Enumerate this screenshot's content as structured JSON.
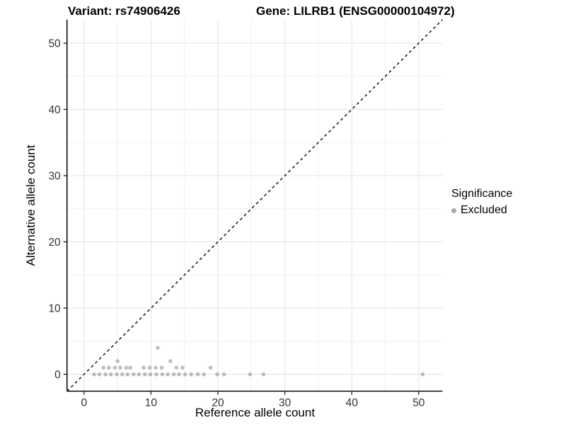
{
  "header": {
    "title_left": "Variant: rs74906426",
    "title_right": "Gene: LILRB1 (ENSG00000104972)"
  },
  "legend": {
    "title": "Significance",
    "items": [
      {
        "label": "Excluded",
        "color": "#a8a8a8"
      }
    ]
  },
  "chart_data": {
    "type": "scatter",
    "title": "Variant: rs74906426 — Gene: LILRB1 (ENSG00000104972)",
    "xlabel": "Reference allele count",
    "ylabel": "Alternative allele count",
    "xlim": [
      -2.55,
      53.55
    ],
    "ylim": [
      -2.55,
      53.55
    ],
    "x_ticks": [
      0,
      10,
      20,
      30,
      40,
      50
    ],
    "y_ticks": [
      0,
      10,
      20,
      30,
      40,
      50
    ],
    "minor_grid_step": 5,
    "grid": true,
    "legend_position": "right",
    "identity_line": {
      "style": "dashed",
      "equation": "y = x",
      "color": "#000000"
    },
    "point_color": "#8a8a8a",
    "point_opacity": 0.55,
    "series": [
      {
        "name": "Excluded",
        "points": [
          [
            1.5,
            0
          ],
          [
            2.3,
            0
          ],
          [
            3.2,
            0
          ],
          [
            4.0,
            0
          ],
          [
            4.9,
            0
          ],
          [
            5.7,
            0
          ],
          [
            6.5,
            0
          ],
          [
            7.4,
            0
          ],
          [
            8.2,
            0
          ],
          [
            9.1,
            0
          ],
          [
            9.9,
            0
          ],
          [
            10.8,
            0
          ],
          [
            11.7,
            0
          ],
          [
            12.5,
            0
          ],
          [
            13.4,
            0
          ],
          [
            14.2,
            0
          ],
          [
            15.1,
            0
          ],
          [
            16.0,
            0
          ],
          [
            17.0,
            0
          ],
          [
            17.9,
            0
          ],
          [
            19.9,
            0
          ],
          [
            20.9,
            0
          ],
          [
            24.8,
            0
          ],
          [
            26.8,
            0
          ],
          [
            50.6,
            0
          ],
          [
            2.9,
            1
          ],
          [
            3.7,
            1
          ],
          [
            4.6,
            1
          ],
          [
            5.4,
            1
          ],
          [
            6.3,
            1
          ],
          [
            6.9,
            1
          ],
          [
            8.9,
            1
          ],
          [
            9.8,
            1
          ],
          [
            10.7,
            1
          ],
          [
            11.6,
            1
          ],
          [
            13.8,
            1
          ],
          [
            14.7,
            1
          ],
          [
            18.9,
            1
          ],
          [
            5.0,
            2
          ],
          [
            12.9,
            2
          ],
          [
            11.0,
            4
          ]
        ]
      }
    ]
  },
  "style": {
    "grid_major_color": "#e3e3e3",
    "grid_minor_color": "#f0f0f0",
    "axis_line_color": "#1a1a1a",
    "tick_label_color": "#333333"
  }
}
